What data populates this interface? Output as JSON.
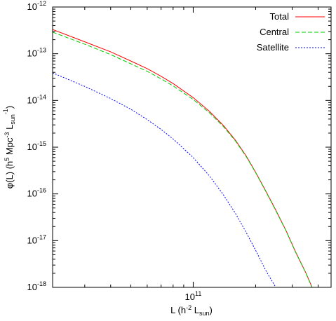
{
  "chart_data": {
    "type": "line",
    "xscale": "log",
    "yscale": "log",
    "xlim": [
      21000000000.0,
      462000000000.0
    ],
    "ylim": [
      1e-18,
      1e-12
    ],
    "xticks": [
      {
        "value": 100000000000.0,
        "base": "10",
        "exp": "11"
      }
    ],
    "yticks": [
      {
        "value": 1e-12,
        "base": "10",
        "exp": "-12"
      },
      {
        "value": 1e-13,
        "base": "10",
        "exp": "-13"
      },
      {
        "value": 1e-14,
        "base": "10",
        "exp": "-14"
      },
      {
        "value": 1e-15,
        "base": "10",
        "exp": "-15"
      },
      {
        "value": 1e-16,
        "base": "10",
        "exp": "-16"
      },
      {
        "value": 1e-17,
        "base": "10",
        "exp": "-17"
      },
      {
        "value": 1e-18,
        "base": "10",
        "exp": "-18"
      }
    ],
    "xlabel": {
      "main": "L (h",
      "sup1": "-2",
      "mid": " L",
      "sub": "sun",
      "end": ")"
    },
    "ylabel": {
      "p1": "φ(L) (h",
      "s1": "5",
      "p2": " Mpc",
      "s2": "-3",
      "p3": " L",
      "sub": "sun",
      "s3": "-1",
      "p4": ")"
    },
    "legend_position": "top-right",
    "grid": false,
    "series": [
      {
        "name": "Total",
        "color": "#ff0000",
        "dash": "none",
        "points": [
          [
            21000000000.0,
            3.3e-13
          ],
          [
            30000000000.0,
            1.8e-13
          ],
          [
            40000000000.0,
            1.1e-13
          ],
          [
            50000000000.0,
            7e-14
          ],
          [
            60000000000.0,
            4.8e-14
          ],
          [
            70000000000.0,
            3.3e-14
          ],
          [
            80000000000.0,
            2.3e-14
          ],
          [
            100000000000.0,
            1.15e-14
          ],
          [
            120000000000.0,
            5.8e-15
          ],
          [
            140000000000.0,
            2.9e-15
          ],
          [
            160000000000.0,
            1.4e-15
          ],
          [
            180000000000.0,
            6.5e-16
          ],
          [
            200000000000.0,
            2.9e-16
          ],
          [
            225000000000.0,
            1.1e-16
          ],
          [
            250000000000.0,
            4.5e-17
          ],
          [
            280000000000.0,
            1.65e-17
          ],
          [
            310000000000.0,
            6e-18
          ],
          [
            350000000000.0,
            2e-18
          ],
          [
            400000000000.0,
            5e-19
          ],
          [
            460000000000.0,
            1e-18
          ]
        ]
      },
      {
        "name": "Central",
        "color": "#00cc00",
        "dash": "6,3",
        "points": [
          [
            21000000000.0,
            2.9e-13
          ],
          [
            30000000000.0,
            1.6e-13
          ],
          [
            40000000000.0,
            9.6e-14
          ],
          [
            50000000000.0,
            6.1e-14
          ],
          [
            60000000000.0,
            4.2e-14
          ],
          [
            70000000000.0,
            2.9e-14
          ],
          [
            80000000000.0,
            2.05e-14
          ],
          [
            100000000000.0,
            1.05e-14
          ],
          [
            120000000000.0,
            5.4e-15
          ],
          [
            140000000000.0,
            2.75e-15
          ],
          [
            160000000000.0,
            1.35e-15
          ],
          [
            180000000000.0,
            6.3e-16
          ],
          [
            200000000000.0,
            2.85e-16
          ],
          [
            225000000000.0,
            1.08e-16
          ],
          [
            250000000000.0,
            4.4e-17
          ],
          [
            280000000000.0,
            1.63e-17
          ],
          [
            310000000000.0,
            5.9e-18
          ],
          [
            350000000000.0,
            1.98e-18
          ],
          [
            400000000000.0,
            4.9e-19
          ],
          [
            460000000000.0,
            1e-18
          ]
        ]
      },
      {
        "name": "Satellite",
        "color": "#0000ff",
        "dash": "2,2",
        "points": [
          [
            21000000000.0,
            3.9e-14
          ],
          [
            30000000000.0,
            2e-14
          ],
          [
            40000000000.0,
            1.1e-14
          ],
          [
            50000000000.0,
            6.5e-15
          ],
          [
            60000000000.0,
            3.9e-15
          ],
          [
            70000000000.0,
            2.4e-15
          ],
          [
            80000000000.0,
            1.5e-15
          ],
          [
            100000000000.0,
            6e-16
          ],
          [
            120000000000.0,
            2.4e-16
          ],
          [
            140000000000.0,
            9.5e-17
          ],
          [
            160000000000.0,
            3.8e-17
          ],
          [
            180000000000.0,
            1.5e-17
          ],
          [
            200000000000.0,
            6.2e-18
          ],
          [
            225000000000.0,
            2.2e-18
          ],
          [
            250000000000.0,
            1e-18
          ]
        ]
      }
    ]
  }
}
